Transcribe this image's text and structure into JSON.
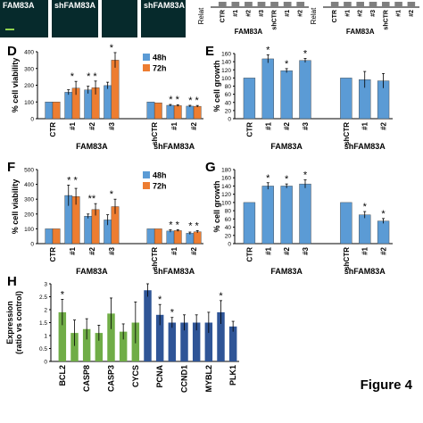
{
  "figure_label": "Figure 4",
  "top_strip": {
    "images": [
      {
        "label": "FAM83A"
      },
      {
        "label": "shFAM83A"
      },
      {
        "label": ""
      },
      {
        "label": "shFAM83A"
      }
    ],
    "partial_charts": [
      {
        "ylabel": "Relat",
        "categories": [
          "CTR",
          "#1",
          "#2",
          "#3",
          "shCTR",
          "#1",
          "#2"
        ],
        "group_label": "FAM83A"
      },
      {
        "ylabel": "Relat",
        "categories": [
          "CTR",
          "#1",
          "#2",
          "#3",
          "shCTR",
          "#1",
          "#2"
        ],
        "group_label": "FAM83A"
      }
    ]
  },
  "chart_data": [
    {
      "panel": "D",
      "type": "bar",
      "ylabel": "% cell viability",
      "ylim": [
        0,
        400
      ],
      "yticks": [
        0,
        100,
        200,
        300,
        400
      ],
      "categories": [
        "CTR",
        "#1",
        "#2",
        "#3",
        "shCTR",
        "#1",
        "#2"
      ],
      "groups": [
        {
          "label": "FAM83A",
          "from": 1,
          "to": 3
        },
        {
          "label": "shFAM83A",
          "from": 4,
          "to": 6
        }
      ],
      "series": [
        {
          "name": "48h",
          "color": "#5b9bd5",
          "values": [
            100,
            158,
            172,
            198,
            100,
            80,
            75
          ],
          "errors": [
            0,
            15,
            22,
            20,
            0,
            5,
            5
          ]
        },
        {
          "name": "72h",
          "color": "#ed7d31",
          "values": [
            100,
            183,
            185,
            350,
            95,
            78,
            74
          ],
          "errors": [
            0,
            40,
            40,
            45,
            0,
            5,
            5
          ]
        }
      ],
      "stars": [
        "",
        "*",
        "* *",
        "*",
        "",
        "* *",
        "* *"
      ],
      "legend": "top-right",
      "grid": false
    },
    {
      "panel": "E",
      "type": "bar",
      "ylabel": "% cell growth",
      "ylim": [
        0,
        160
      ],
      "yticks": [
        0,
        20,
        40,
        60,
        80,
        100,
        120,
        140,
        160
      ],
      "categories": [
        "CTR",
        "#1",
        "#2",
        "#3",
        "shCTR",
        "#1",
        "#2"
      ],
      "groups": [
        {
          "label": "FAM83A",
          "from": 1,
          "to": 3
        },
        {
          "label": "shFAM83A",
          "from": 4,
          "to": 6
        }
      ],
      "series": [
        {
          "name": "",
          "color": "#5b9bd5",
          "values": [
            100,
            147,
            118,
            143,
            100,
            96,
            93
          ],
          "errors": [
            0,
            10,
            5,
            5,
            0,
            20,
            18
          ]
        }
      ],
      "stars": [
        "",
        "*",
        "*",
        "*",
        "",
        "",
        ""
      ],
      "grid": false
    },
    {
      "panel": "F",
      "type": "bar",
      "ylabel": "% cell viability",
      "ylim": [
        0,
        500
      ],
      "yticks": [
        0,
        100,
        200,
        300,
        400,
        500
      ],
      "categories": [
        "CTR",
        "#1",
        "#2",
        "#3",
        "shCTR",
        "#1",
        "#2"
      ],
      "groups": [
        {
          "label": "FAM83A",
          "from": 1,
          "to": 3
        },
        {
          "label": "shFAM83A",
          "from": 4,
          "to": 6
        }
      ],
      "series": [
        {
          "name": "48h",
          "color": "#5b9bd5",
          "values": [
            100,
            325,
            185,
            160,
            100,
            85,
            70
          ],
          "errors": [
            0,
            70,
            15,
            35,
            0,
            8,
            8
          ]
        },
        {
          "name": "72h",
          "color": "#ed7d31",
          "values": [
            100,
            318,
            230,
            250,
            100,
            88,
            80
          ],
          "errors": [
            0,
            55,
            40,
            50,
            0,
            6,
            8
          ]
        }
      ],
      "stars": [
        "",
        "* *",
        "**",
        "*",
        "",
        "* *",
        "* *"
      ],
      "legend": "top-right",
      "grid": false
    },
    {
      "panel": "G",
      "type": "bar",
      "ylabel": "% cell growth",
      "ylim": [
        0,
        180
      ],
      "yticks": [
        0,
        20,
        40,
        60,
        80,
        100,
        120,
        140,
        160,
        180
      ],
      "categories": [
        "CTR",
        "#1",
        "#2",
        "#3",
        "shCTR",
        "#1",
        "#2"
      ],
      "groups": [
        {
          "label": "FAM83A",
          "from": 1,
          "to": 3
        },
        {
          "label": "shFAM83A",
          "from": 4,
          "to": 6
        }
      ],
      "series": [
        {
          "name": "",
          "color": "#5b9bd5",
          "values": [
            100,
            140,
            140,
            145,
            100,
            70,
            55
          ],
          "errors": [
            0,
            8,
            5,
            10,
            0,
            8,
            6
          ]
        }
      ],
      "stars": [
        "",
        "*",
        "*",
        "*",
        "",
        "*",
        "*"
      ],
      "grid": false
    },
    {
      "panel": "H",
      "type": "bar",
      "ylabel": "Expression\n(ratio vs control)",
      "ylim": [
        0,
        3
      ],
      "yticks": [
        0,
        0.5,
        1,
        1.5,
        2,
        2.5,
        3
      ],
      "categories": [
        "BCL2",
        "",
        "CASP8",
        "",
        "CASP3",
        "",
        "CYCS",
        "",
        "PCNA",
        "",
        "CCND1",
        "",
        "MYBL2",
        "",
        "PLK1"
      ],
      "bars": [
        {
          "value": 1.9,
          "error": 0.5,
          "color": "#70ad47",
          "star": "*"
        },
        {
          "value": 1.1,
          "error": 0.5,
          "color": "#70ad47",
          "star": ""
        },
        {
          "value": 1.25,
          "error": 0.4,
          "color": "#70ad47",
          "star": ""
        },
        {
          "value": 1.1,
          "error": 0.3,
          "color": "#70ad47",
          "star": ""
        },
        {
          "value": 1.85,
          "error": 0.6,
          "color": "#70ad47",
          "star": ""
        },
        {
          "value": 1.15,
          "error": 0.3,
          "color": "#70ad47",
          "star": ""
        },
        {
          "value": 1.5,
          "error": 0.8,
          "color": "#70ad47",
          "star": ""
        },
        {
          "value": 2.75,
          "error": 0.25,
          "color": "#2f5597",
          "star": ""
        },
        {
          "value": 1.8,
          "error": 0.4,
          "color": "#2f5597",
          "star": "*"
        },
        {
          "value": 1.5,
          "error": 0.2,
          "color": "#2f5597",
          "star": "*"
        },
        {
          "value": 1.5,
          "error": 0.3,
          "color": "#2f5597",
          "star": ""
        },
        {
          "value": 1.5,
          "error": 0.3,
          "color": "#2f5597",
          "star": ""
        },
        {
          "value": 1.5,
          "error": 0.4,
          "color": "#2f5597",
          "star": ""
        },
        {
          "value": 1.9,
          "error": 0.45,
          "color": "#2f5597",
          "star": "*"
        },
        {
          "value": 1.35,
          "error": 0.2,
          "color": "#2f5597",
          "star": ""
        }
      ],
      "grid": false
    }
  ]
}
